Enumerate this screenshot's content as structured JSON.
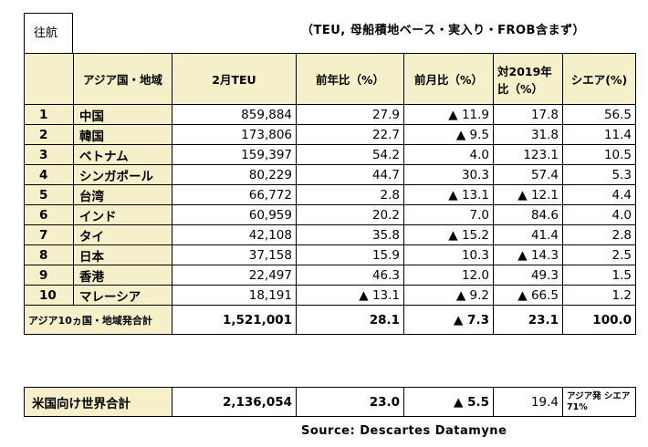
{
  "corner_label": "往航",
  "note": "（TEU, 母船積地ベース・実入り・FROB含まず）",
  "headers": {
    "region": "アジア国・地域",
    "teu": "2月TEU",
    "yoy": "前年比（%）",
    "mom": "前月比（%）",
    "vs2019": "対2019年比（%）",
    "share": "シエア(%)"
  },
  "rows": [
    {
      "rank": "1",
      "name": "中国",
      "teu": "859,884",
      "yoy": "27.9",
      "mom": "▲ 11.9",
      "vs2019": "17.8",
      "share": "56.5"
    },
    {
      "rank": "2",
      "name": "韓国",
      "teu": "173,806",
      "yoy": "22.7",
      "mom": "▲ 9.5",
      "vs2019": "31.8",
      "share": "11.4"
    },
    {
      "rank": "3",
      "name": "ベトナム",
      "teu": "159,397",
      "yoy": "54.2",
      "mom": "4.0",
      "vs2019": "123.1",
      "share": "10.5"
    },
    {
      "rank": "4",
      "name": "シンガポール",
      "teu": "80,229",
      "yoy": "44.7",
      "mom": "30.3",
      "vs2019": "57.4",
      "share": "5.3"
    },
    {
      "rank": "5",
      "name": "台湾",
      "teu": "66,772",
      "yoy": "2.8",
      "mom": "▲ 13.1",
      "vs2019": "▲ 12.1",
      "share": "4.4"
    },
    {
      "rank": "6",
      "name": "インド",
      "teu": "60,959",
      "yoy": "20.2",
      "mom": "7.0",
      "vs2019": "84.6",
      "share": "4.0"
    },
    {
      "rank": "7",
      "name": "タイ",
      "teu": "42,108",
      "yoy": "35.8",
      "mom": "▲ 15.2",
      "vs2019": "41.4",
      "share": "2.8"
    },
    {
      "rank": "8",
      "name": "日本",
      "teu": "37,158",
      "yoy": "15.9",
      "mom": "10.3",
      "vs2019": "▲ 14.3",
      "share": "2.5"
    },
    {
      "rank": "9",
      "name": "香港",
      "teu": "22,497",
      "yoy": "46.3",
      "mom": "12.0",
      "vs2019": "49.3",
      "share": "1.5"
    },
    {
      "rank": "10",
      "name": "マレーシア",
      "teu": "18,191",
      "yoy": "▲ 13.1",
      "mom": "▲ 9.2",
      "vs2019": "▲ 66.5",
      "share": "1.2"
    }
  ],
  "total": {
    "label": "アジア10ヵ国・地域発合計",
    "teu": "1,521,001",
    "yoy": "28.1",
    "mom": "▲ 7.3",
    "vs2019": "23.1",
    "share": "100.0"
  },
  "us_total": {
    "label": "米国向け世界合計",
    "teu": "2,136,054",
    "yoy": "23.0",
    "mom": "▲ 5.5",
    "vs2019": "19.4",
    "share": "アジア発 シエア 71%"
  },
  "source": "Source: Descartes Datamyne"
}
